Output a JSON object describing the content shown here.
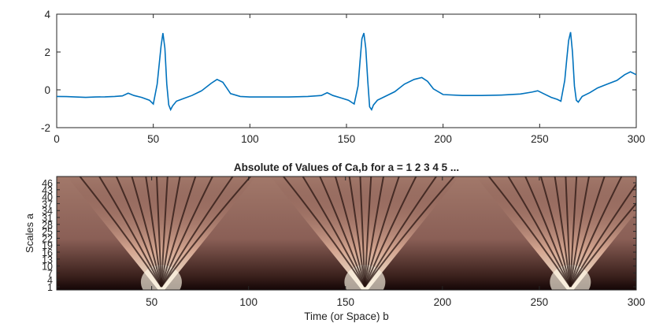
{
  "chart_data": [
    {
      "type": "line",
      "title": "",
      "xlabel": "",
      "ylabel": "",
      "xlim": [
        0,
        300
      ],
      "ylim": [
        -2,
        4
      ],
      "xticks": [
        0,
        50,
        100,
        150,
        200,
        250,
        300
      ],
      "yticks": [
        -2,
        0,
        2,
        4
      ],
      "grid": false,
      "line_color": "#0072bd",
      "series": [
        {
          "x": [
            0,
            5,
            10,
            15,
            20,
            25,
            30,
            34,
            37,
            40,
            44,
            48,
            50,
            52,
            54,
            55,
            56,
            57,
            58,
            59,
            60,
            62,
            66,
            70,
            75,
            80,
            83,
            86,
            88,
            90,
            95,
            100,
            110,
            120,
            130,
            137,
            140,
            143,
            147,
            151,
            154,
            156,
            157,
            158,
            159,
            160,
            161,
            162,
            163,
            164,
            166,
            170,
            175,
            180,
            185,
            189,
            192,
            195,
            200,
            210,
            220,
            230,
            240,
            246,
            249,
            252,
            256,
            259,
            261,
            263,
            264,
            265,
            266,
            267,
            268,
            269,
            270,
            272,
            276,
            280,
            285,
            290,
            294,
            297,
            300
          ],
          "y": [
            -0.35,
            -0.36,
            -0.38,
            -0.4,
            -0.38,
            -0.37,
            -0.35,
            -0.32,
            -0.18,
            -0.3,
            -0.4,
            -0.55,
            -0.75,
            0.3,
            2.3,
            3.0,
            2.2,
            0.3,
            -0.8,
            -1.05,
            -0.85,
            -0.6,
            -0.45,
            -0.3,
            -0.05,
            0.35,
            0.55,
            0.4,
            0.1,
            -0.2,
            -0.35,
            -0.38,
            -0.38,
            -0.38,
            -0.35,
            -0.3,
            -0.15,
            -0.3,
            -0.42,
            -0.55,
            -0.75,
            0.2,
            1.5,
            2.7,
            3.0,
            2.2,
            0.5,
            -0.9,
            -1.05,
            -0.8,
            -0.55,
            -0.35,
            -0.1,
            0.3,
            0.55,
            0.65,
            0.45,
            0.05,
            -0.25,
            -0.3,
            -0.3,
            -0.28,
            -0.22,
            -0.12,
            -0.05,
            -0.2,
            -0.4,
            -0.5,
            -0.6,
            0.5,
            1.6,
            2.6,
            3.05,
            2.0,
            0.2,
            -0.55,
            -0.65,
            -0.35,
            -0.15,
            0.1,
            0.3,
            0.5,
            0.8,
            0.95,
            0.8
          ]
        }
      ]
    },
    {
      "type": "heatmap",
      "title": "Absolute of Values of Ca,b for a =  1 2 3 4 5 ...",
      "xlabel": "Time (or Space) b",
      "ylabel": "Scales a",
      "xlim": [
        1,
        300
      ],
      "xticks": [
        50,
        100,
        150,
        200,
        250,
        300
      ],
      "yticks": [
        "1",
        "4",
        "7",
        "10",
        "13",
        "16",
        "19",
        "22",
        "25",
        "28",
        "31",
        "34",
        "37",
        "40",
        "43",
        "46"
      ],
      "colormap": "pink",
      "cone_centers_b": [
        55,
        160,
        266
      ]
    }
  ]
}
